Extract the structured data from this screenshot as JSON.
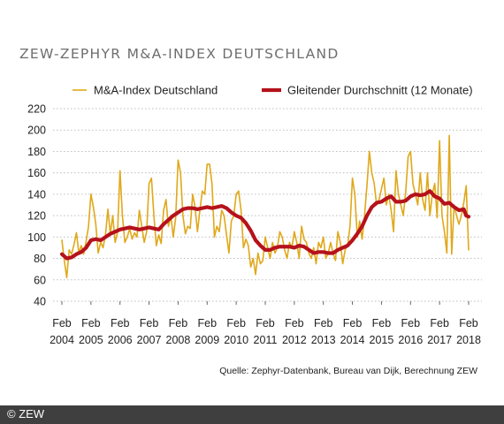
{
  "chart_title": "ZEW-ZEPHYR M&A-INDEX DEUTSCHLAND",
  "source": "Quelle: Zephyr-Datenbank, Bureau van Dijk, Berechnung ZEW",
  "copyright": "© ZEW",
  "colors": {
    "index": "#e0a81a",
    "moving_average": "#b5121b",
    "grid": "#bdbdbd",
    "text": "#222222",
    "title": "#6e6e6e",
    "footer": "#3f3f3f"
  },
  "chart_data": {
    "type": "line",
    "title": "ZEW-ZEPHYR M&A-INDEX DEUTSCHLAND",
    "xlabel": "",
    "ylabel": "",
    "ylim": [
      40,
      220
    ],
    "yticks": [
      40,
      60,
      80,
      100,
      120,
      140,
      160,
      180,
      200,
      220
    ],
    "x_start": "2004-02",
    "x_end": "2018-02",
    "xticks": [
      {
        "month": "Feb",
        "year": "2004"
      },
      {
        "month": "Feb",
        "year": "2005"
      },
      {
        "month": "Feb",
        "year": "2006"
      },
      {
        "month": "Feb",
        "year": "2007"
      },
      {
        "month": "Feb",
        "year": "2008"
      },
      {
        "month": "Feb",
        "year": "2009"
      },
      {
        "month": "Feb",
        "year": "2010"
      },
      {
        "month": "Feb",
        "year": "2011"
      },
      {
        "month": "Feb",
        "year": "2012"
      },
      {
        "month": "Feb",
        "year": "2013"
      },
      {
        "month": "Feb",
        "year": "2014"
      },
      {
        "month": "Feb",
        "year": "2015"
      },
      {
        "month": "Feb",
        "year": "2016"
      },
      {
        "month": "Feb",
        "year": "2017"
      },
      {
        "month": "Feb",
        "year": "2018"
      }
    ],
    "grid": true,
    "legend_position": "top",
    "series": [
      {
        "name": "M&A-Index Deutschland",
        "color": "#e0a81a",
        "points": [
          [
            "2004-02",
            97
          ],
          [
            "2004-03",
            78
          ],
          [
            "2004-04",
            62
          ],
          [
            "2004-05",
            88
          ],
          [
            "2004-06",
            84
          ],
          [
            "2004-07",
            93
          ],
          [
            "2004-08",
            104
          ],
          [
            "2004-09",
            85
          ],
          [
            "2004-10",
            92
          ],
          [
            "2004-11",
            84
          ],
          [
            "2004-12",
            96
          ],
          [
            "2005-01",
            110
          ],
          [
            "2005-02",
            140
          ],
          [
            "2005-03",
            128
          ],
          [
            "2005-04",
            112
          ],
          [
            "2005-05",
            85
          ],
          [
            "2005-06",
            95
          ],
          [
            "2005-07",
            90
          ],
          [
            "2005-08",
            102
          ],
          [
            "2005-09",
            126
          ],
          [
            "2005-10",
            103
          ],
          [
            "2005-11",
            120
          ],
          [
            "2005-12",
            95
          ],
          [
            "2006-01",
            105
          ],
          [
            "2006-02",
            162
          ],
          [
            "2006-03",
            120
          ],
          [
            "2006-04",
            95
          ],
          [
            "2006-05",
            100
          ],
          [
            "2006-06",
            108
          ],
          [
            "2006-07",
            98
          ],
          [
            "2006-08",
            104
          ],
          [
            "2006-09",
            100
          ],
          [
            "2006-10",
            125
          ],
          [
            "2006-11",
            110
          ],
          [
            "2006-12",
            95
          ],
          [
            "2007-01",
            105
          ],
          [
            "2007-02",
            150
          ],
          [
            "2007-03",
            155
          ],
          [
            "2007-04",
            120
          ],
          [
            "2007-05",
            92
          ],
          [
            "2007-06",
            102
          ],
          [
            "2007-07",
            94
          ],
          [
            "2007-08",
            125
          ],
          [
            "2007-09",
            135
          ],
          [
            "2007-10",
            110
          ],
          [
            "2007-11",
            120
          ],
          [
            "2007-12",
            100
          ],
          [
            "2008-01",
            118
          ],
          [
            "2008-02",
            172
          ],
          [
            "2008-03",
            160
          ],
          [
            "2008-04",
            120
          ],
          [
            "2008-05",
            103
          ],
          [
            "2008-06",
            110
          ],
          [
            "2008-07",
            108
          ],
          [
            "2008-08",
            140
          ],
          [
            "2008-09",
            128
          ],
          [
            "2008-10",
            105
          ],
          [
            "2008-11",
            125
          ],
          [
            "2008-12",
            143
          ],
          [
            "2009-01",
            140
          ],
          [
            "2009-02",
            168
          ],
          [
            "2009-03",
            168
          ],
          [
            "2009-04",
            150
          ],
          [
            "2009-05",
            100
          ],
          [
            "2009-06",
            110
          ],
          [
            "2009-07",
            105
          ],
          [
            "2009-08",
            125
          ],
          [
            "2009-09",
            120
          ],
          [
            "2009-10",
            102
          ],
          [
            "2009-11",
            85
          ],
          [
            "2009-12",
            115
          ],
          [
            "2010-01",
            120
          ],
          [
            "2010-02",
            140
          ],
          [
            "2010-03",
            143
          ],
          [
            "2010-04",
            125
          ],
          [
            "2010-05",
            90
          ],
          [
            "2010-06",
            98
          ],
          [
            "2010-07",
            92
          ],
          [
            "2010-08",
            72
          ],
          [
            "2010-09",
            80
          ],
          [
            "2010-10",
            65
          ],
          [
            "2010-11",
            85
          ],
          [
            "2010-12",
            75
          ],
          [
            "2011-01",
            78
          ],
          [
            "2011-02",
            100
          ],
          [
            "2011-03",
            90
          ],
          [
            "2011-04",
            80
          ],
          [
            "2011-05",
            95
          ],
          [
            "2011-06",
            85
          ],
          [
            "2011-07",
            90
          ],
          [
            "2011-08",
            105
          ],
          [
            "2011-09",
            100
          ],
          [
            "2011-10",
            88
          ],
          [
            "2011-11",
            80
          ],
          [
            "2011-12",
            95
          ],
          [
            "2012-01",
            90
          ],
          [
            "2012-02",
            105
          ],
          [
            "2012-03",
            95
          ],
          [
            "2012-04",
            80
          ],
          [
            "2012-05",
            110
          ],
          [
            "2012-06",
            98
          ],
          [
            "2012-07",
            95
          ],
          [
            "2012-08",
            85
          ],
          [
            "2012-09",
            80
          ],
          [
            "2012-10",
            90
          ],
          [
            "2012-11",
            75
          ],
          [
            "2012-12",
            95
          ],
          [
            "2013-01",
            90
          ],
          [
            "2013-02",
            100
          ],
          [
            "2013-03",
            80
          ],
          [
            "2013-04",
            85
          ],
          [
            "2013-05",
            95
          ],
          [
            "2013-06",
            85
          ],
          [
            "2013-07",
            78
          ],
          [
            "2013-08",
            105
          ],
          [
            "2013-09",
            95
          ],
          [
            "2013-10",
            75
          ],
          [
            "2013-11",
            88
          ],
          [
            "2013-12",
            92
          ],
          [
            "2014-01",
            110
          ],
          [
            "2014-02",
            155
          ],
          [
            "2014-03",
            140
          ],
          [
            "2014-04",
            100
          ],
          [
            "2014-05",
            115
          ],
          [
            "2014-06",
            98
          ],
          [
            "2014-07",
            120
          ],
          [
            "2014-08",
            148
          ],
          [
            "2014-09",
            180
          ],
          [
            "2014-10",
            160
          ],
          [
            "2014-11",
            150
          ],
          [
            "2014-12",
            130
          ],
          [
            "2015-01",
            135
          ],
          [
            "2015-02",
            145
          ],
          [
            "2015-03",
            155
          ],
          [
            "2015-04",
            130
          ],
          [
            "2015-05",
            140
          ],
          [
            "2015-06",
            125
          ],
          [
            "2015-07",
            105
          ],
          [
            "2015-08",
            162
          ],
          [
            "2015-09",
            140
          ],
          [
            "2015-10",
            130
          ],
          [
            "2015-11",
            120
          ],
          [
            "2015-12",
            142
          ],
          [
            "2016-01",
            175
          ],
          [
            "2016-02",
            180
          ],
          [
            "2016-03",
            150
          ],
          [
            "2016-04",
            140
          ],
          [
            "2016-05",
            130
          ],
          [
            "2016-06",
            160
          ],
          [
            "2016-07",
            135
          ],
          [
            "2016-08",
            125
          ],
          [
            "2016-09",
            160
          ],
          [
            "2016-10",
            120
          ],
          [
            "2016-11",
            140
          ],
          [
            "2016-12",
            150
          ],
          [
            "2017-01",
            118
          ],
          [
            "2017-02",
            190
          ],
          [
            "2017-03",
            120
          ],
          [
            "2017-04",
            105
          ],
          [
            "2017-05",
            85
          ],
          [
            "2017-06",
            195
          ],
          [
            "2017-07",
            84
          ],
          [
            "2017-08",
            130
          ],
          [
            "2017-09",
            120
          ],
          [
            "2017-10",
            112
          ],
          [
            "2017-11",
            120
          ],
          [
            "2017-12",
            132
          ],
          [
            "2018-01",
            148
          ],
          [
            "2018-02",
            88
          ]
        ]
      },
      {
        "name": "Gleitender Durchschnitt (12 Monate)",
        "color": "#b5121b",
        "points": [
          [
            "2004-02",
            84
          ],
          [
            "2004-04",
            80
          ],
          [
            "2004-06",
            81
          ],
          [
            "2004-08",
            84
          ],
          [
            "2004-10",
            86
          ],
          [
            "2004-12",
            90
          ],
          [
            "2005-02",
            97
          ],
          [
            "2005-04",
            98
          ],
          [
            "2005-06",
            97
          ],
          [
            "2005-08",
            100
          ],
          [
            "2005-10",
            103
          ],
          [
            "2005-12",
            105
          ],
          [
            "2006-02",
            107
          ],
          [
            "2006-04",
            108
          ],
          [
            "2006-06",
            109
          ],
          [
            "2006-08",
            108
          ],
          [
            "2006-10",
            107
          ],
          [
            "2006-12",
            108
          ],
          [
            "2007-02",
            109
          ],
          [
            "2007-04",
            108
          ],
          [
            "2007-06",
            107
          ],
          [
            "2007-08",
            112
          ],
          [
            "2007-10",
            116
          ],
          [
            "2007-12",
            120
          ],
          [
            "2008-02",
            123
          ],
          [
            "2008-04",
            126
          ],
          [
            "2008-06",
            127
          ],
          [
            "2008-08",
            127
          ],
          [
            "2008-10",
            126
          ],
          [
            "2008-12",
            127
          ],
          [
            "2009-02",
            128
          ],
          [
            "2009-04",
            127
          ],
          [
            "2009-06",
            128
          ],
          [
            "2009-08",
            129
          ],
          [
            "2009-10",
            127
          ],
          [
            "2009-12",
            123
          ],
          [
            "2010-02",
            120
          ],
          [
            "2010-04",
            118
          ],
          [
            "2010-06",
            113
          ],
          [
            "2010-08",
            106
          ],
          [
            "2010-10",
            97
          ],
          [
            "2010-12",
            92
          ],
          [
            "2011-02",
            88
          ],
          [
            "2011-04",
            88
          ],
          [
            "2011-06",
            90
          ],
          [
            "2011-08",
            91
          ],
          [
            "2011-10",
            91
          ],
          [
            "2011-12",
            91
          ],
          [
            "2012-02",
            90
          ],
          [
            "2012-04",
            92
          ],
          [
            "2012-06",
            91
          ],
          [
            "2012-08",
            88
          ],
          [
            "2012-10",
            85
          ],
          [
            "2012-12",
            86
          ],
          [
            "2013-02",
            86
          ],
          [
            "2013-04",
            85
          ],
          [
            "2013-06",
            85
          ],
          [
            "2013-08",
            88
          ],
          [
            "2013-10",
            90
          ],
          [
            "2013-12",
            92
          ],
          [
            "2014-02",
            97
          ],
          [
            "2014-04",
            103
          ],
          [
            "2014-06",
            110
          ],
          [
            "2014-08",
            120
          ],
          [
            "2014-10",
            128
          ],
          [
            "2014-12",
            132
          ],
          [
            "2015-02",
            133
          ],
          [
            "2015-04",
            136
          ],
          [
            "2015-06",
            138
          ],
          [
            "2015-08",
            133
          ],
          [
            "2015-10",
            133
          ],
          [
            "2015-12",
            134
          ],
          [
            "2016-02",
            138
          ],
          [
            "2016-04",
            140
          ],
          [
            "2016-06",
            139
          ],
          [
            "2016-08",
            140
          ],
          [
            "2016-10",
            143
          ],
          [
            "2016-12",
            138
          ],
          [
            "2017-02",
            136
          ],
          [
            "2017-04",
            131
          ],
          [
            "2017-06",
            132
          ],
          [
            "2017-08",
            128
          ],
          [
            "2017-10",
            125
          ],
          [
            "2017-12",
            126
          ],
          [
            "2018-01",
            120
          ],
          [
            "2018-02",
            119
          ]
        ]
      }
    ]
  }
}
